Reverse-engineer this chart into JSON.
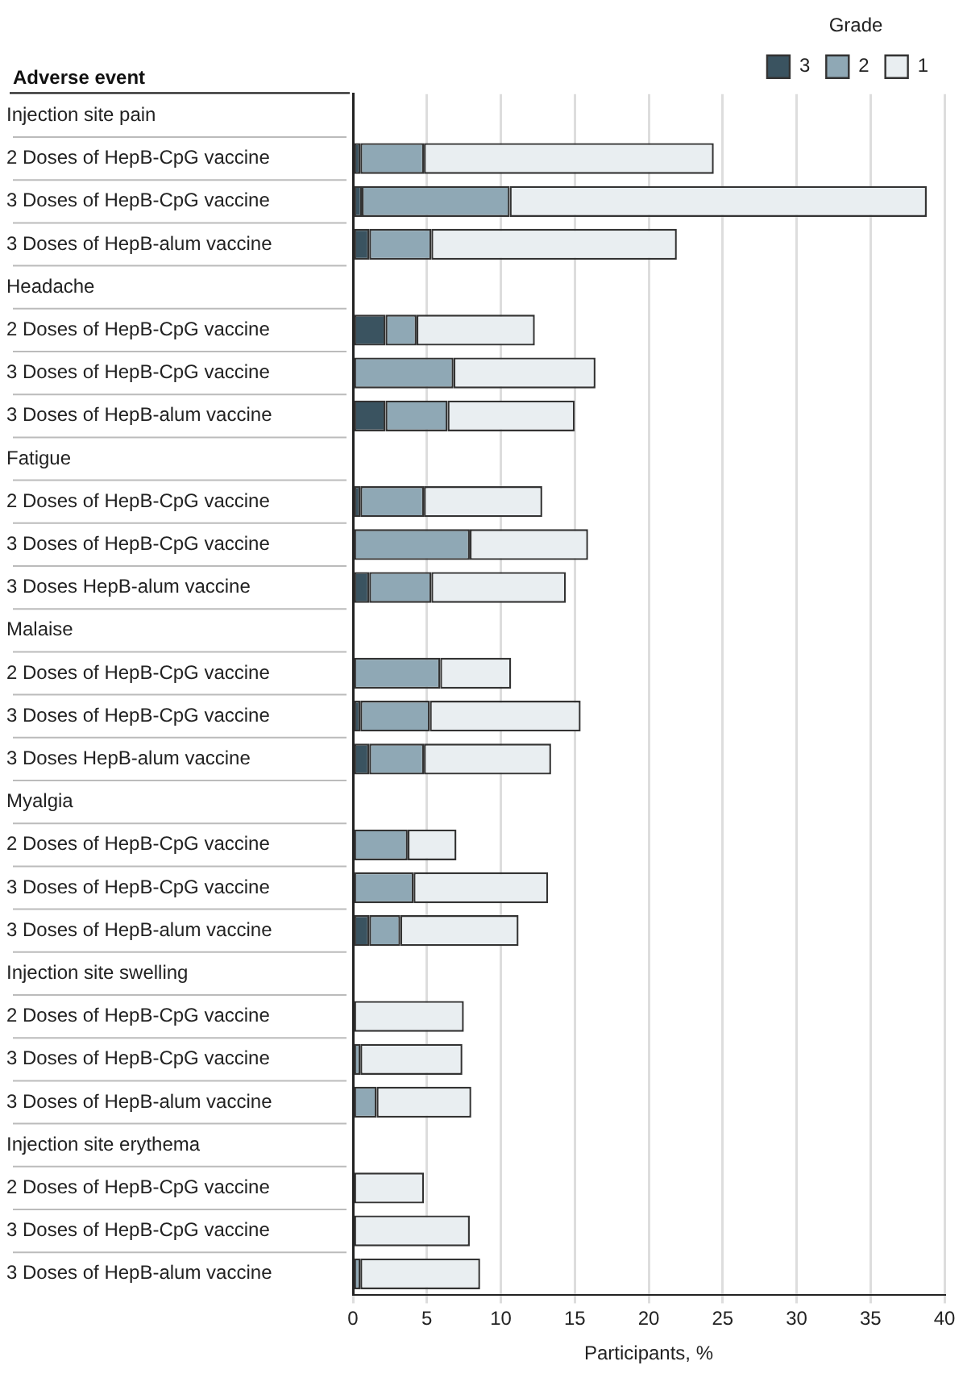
{
  "chart_data": {
    "type": "bar",
    "orientation": "horizontal",
    "stacked": true,
    "xlabel": "Participants, %",
    "ylabel": "Adverse event",
    "legend_title": "Grade",
    "legend": "top right",
    "grid": "x",
    "categories": [
      "Injection site pain",
      "2 Doses of HepB-CpG vaccine",
      "3 Doses of HepB-CpG vaccine",
      "3 Doses of HepB-alum vaccine",
      "Headache",
      "2 Doses of HepB-CpG vaccine",
      "3 Doses of HepB-CpG vaccine",
      "3 Doses of HepB-alum vaccine",
      "Fatigue",
      "2 Doses of HepB-CpG vaccine",
      "3 Doses of HepB-CpG vaccine",
      "3 Doses HepB-alum vaccine",
      "Malaise",
      "2 Doses of HepB-CpG vaccine",
      "3 Doses of HepB-CpG vaccine",
      "3 Doses HepB-alum vaccine",
      "Myalgia",
      "2 Doses of HepB-CpG vaccine",
      "3 Doses of HepB-CpG vaccine",
      "3 Doses of HepB-alum vaccine",
      "Injection site swelling",
      "2 Doses of HepB-CpG vaccine",
      "3 Doses of HepB-CpG vaccine",
      "3 Doses of HepB-alum vaccine",
      "Injection site erythema",
      "2 Doses of HepB-CpG vaccine",
      "3 Doses of HepB-CpG vaccine",
      "3 Doses of HepB-alum vaccine"
    ],
    "series": [
      {
        "name": "3",
        "color": "#3a5360",
        "values": [
          null,
          0.5,
          0.6,
          1.1,
          null,
          2.2,
          0,
          2.2,
          null,
          0.5,
          0,
          1.1,
          null,
          0,
          0.5,
          1.1,
          null,
          0,
          0,
          1.1,
          null,
          0,
          0,
          0,
          null,
          0,
          0,
          0
        ]
      },
      {
        "name": "2",
        "color": "#8fa8b5",
        "values": [
          null,
          4.3,
          10.0,
          4.2,
          null,
          2.1,
          6.8,
          4.2,
          null,
          4.3,
          7.9,
          4.2,
          null,
          5.9,
          4.7,
          3.7,
          null,
          3.7,
          4.1,
          2.1,
          null,
          0,
          0.5,
          1.6,
          null,
          0,
          0,
          0.5
        ]
      },
      {
        "name": "1",
        "color": "#e9eef1",
        "values": [
          null,
          19.6,
          28.2,
          16.6,
          null,
          8.0,
          9.6,
          8.6,
          null,
          8.0,
          8.0,
          9.1,
          null,
          4.8,
          10.2,
          8.6,
          null,
          3.3,
          9.1,
          8.0,
          null,
          7.5,
          6.9,
          6.4,
          null,
          4.8,
          7.9,
          8.1
        ]
      }
    ],
    "xlim": [
      0,
      40
    ],
    "xticks": [
      0,
      5,
      10,
      15,
      20,
      25,
      30,
      35,
      40
    ]
  }
}
